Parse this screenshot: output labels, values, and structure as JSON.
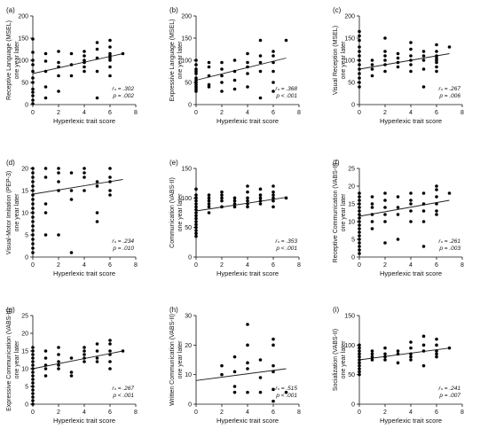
{
  "figure": {
    "xlabel_common": "Hyperlexic trait score"
  },
  "chart_data": [
    {
      "type": "scatter",
      "panel": "(a)",
      "ylabel": [
        "Receptive Language (MSEL)",
        "one year later"
      ],
      "xlabel": "Hyperlexic trait score",
      "xlim": [
        0,
        8
      ],
      "ylim": [
        0,
        200
      ],
      "xticks": [
        0,
        2,
        4,
        6,
        8
      ],
      "yticks": [
        0,
        50,
        100,
        150,
        200
      ],
      "stats": [
        "rₛ = .302",
        "p = .002"
      ],
      "regression": [
        [
          0,
          70
        ],
        [
          7,
          115
        ]
      ],
      "x": [
        0,
        0,
        0,
        0,
        0,
        0,
        0,
        0,
        0,
        0,
        0,
        0,
        1,
        1,
        1,
        1,
        1,
        2,
        2,
        2,
        2,
        2,
        3,
        3,
        3,
        4,
        4,
        4,
        4,
        4,
        4,
        5,
        5,
        5,
        5,
        5,
        6,
        6,
        6,
        6,
        6,
        6,
        6,
        6,
        7
      ],
      "y": [
        148,
        118,
        100,
        90,
        75,
        60,
        50,
        35,
        28,
        20,
        10,
        2,
        115,
        98,
        75,
        40,
        15,
        120,
        95,
        85,
        65,
        30,
        115,
        90,
        65,
        120,
        110,
        100,
        95,
        85,
        75,
        140,
        125,
        105,
        75,
        15,
        145,
        130,
        115,
        110,
        105,
        100,
        85,
        65,
        115
      ]
    },
    {
      "type": "scatter",
      "panel": "(b)",
      "ylabel": [
        "Expressive Language (MSEL)",
        "one year later"
      ],
      "xlabel": "Hyperlexic trait score",
      "xlim": [
        0,
        8
      ],
      "ylim": [
        0,
        200
      ],
      "xticks": [
        0,
        2,
        4,
        6,
        8
      ],
      "yticks": [
        0,
        50,
        100,
        150,
        200
      ],
      "stats": [
        "rₛ = .368",
        "p < .001"
      ],
      "regression": [
        [
          0,
          55
        ],
        [
          7,
          105
        ]
      ],
      "x": [
        0,
        0,
        0,
        0,
        0,
        0,
        0,
        0,
        0,
        0,
        0,
        0,
        1,
        1,
        1,
        1,
        1,
        2,
        2,
        2,
        2,
        2,
        3,
        3,
        3,
        3,
        4,
        4,
        4,
        4,
        4,
        5,
        5,
        5,
        5,
        5,
        6,
        6,
        6,
        6,
        6,
        6,
        7
      ],
      "y": [
        100,
        90,
        80,
        75,
        70,
        60,
        55,
        50,
        45,
        40,
        35,
        30,
        95,
        85,
        65,
        45,
        40,
        95,
        80,
        65,
        50,
        30,
        100,
        75,
        55,
        35,
        115,
        95,
        85,
        70,
        40,
        145,
        110,
        95,
        75,
        15,
        120,
        110,
        95,
        75,
        50,
        30,
        145
      ]
    },
    {
      "type": "scatter",
      "panel": "(c)",
      "ylabel": [
        "Visual Reception (MSEL)",
        "one year later"
      ],
      "xlabel": "Hyperlexic trait score",
      "xlim": [
        0,
        8
      ],
      "ylim": [
        0,
        200
      ],
      "xticks": [
        0,
        2,
        4,
        6,
        8
      ],
      "yticks": [
        0,
        50,
        100,
        150,
        200
      ],
      "stats": [
        "rₛ = .267",
        "p = .006"
      ],
      "regression": [
        [
          0,
          80
        ],
        [
          7,
          115
        ]
      ],
      "x": [
        0,
        0,
        0,
        0,
        0,
        0,
        0,
        0,
        0,
        0,
        0,
        0,
        0,
        1,
        1,
        1,
        1,
        2,
        2,
        2,
        2,
        2,
        2,
        3,
        3,
        3,
        3,
        4,
        4,
        4,
        4,
        4,
        4,
        5,
        5,
        5,
        5,
        5,
        6,
        6,
        6,
        6,
        6,
        6,
        6,
        6,
        7
      ],
      "y": [
        165,
        155,
        145,
        130,
        120,
        110,
        100,
        90,
        80,
        70,
        60,
        50,
        40,
        100,
        90,
        80,
        65,
        150,
        120,
        110,
        100,
        90,
        75,
        115,
        105,
        95,
        85,
        140,
        125,
        110,
        100,
        90,
        75,
        120,
        110,
        100,
        80,
        40,
        135,
        120,
        110,
        105,
        100,
        95,
        85,
        75,
        130
      ]
    },
    {
      "type": "scatter",
      "panel": "(d)",
      "ylabel": [
        "Visual-Motor Imitation (PEP-3)",
        "one year later"
      ],
      "xlabel": "Hyperlexic trait score",
      "xlim": [
        0,
        8
      ],
      "ylim": [
        0,
        20
      ],
      "xticks": [
        0,
        2,
        4,
        6,
        8
      ],
      "yticks": [
        0,
        5,
        10,
        15,
        20
      ],
      "stats": [
        "rₛ = .234",
        "p = .010"
      ],
      "regression": [
        [
          0,
          14.2
        ],
        [
          7,
          17.5
        ]
      ],
      "x": [
        0,
        0,
        0,
        0,
        0,
        0,
        0,
        0,
        0,
        0,
        0,
        0,
        0,
        0,
        0,
        0,
        0,
        0,
        0,
        0,
        1,
        1,
        1,
        1,
        1,
        2,
        2,
        2,
        2,
        2,
        3,
        3,
        3,
        3,
        4,
        4,
        4,
        4,
        5,
        5,
        5,
        5,
        6,
        6,
        6,
        6,
        6
      ],
      "y": [
        20,
        19,
        18,
        17,
        16,
        15,
        14,
        13,
        12,
        11,
        10,
        9,
        8,
        7,
        6,
        5,
        4,
        3,
        2,
        1,
        20,
        18,
        12,
        10,
        5,
        20,
        19,
        17,
        15,
        5,
        19,
        15,
        13,
        1,
        20,
        19,
        18,
        15,
        17,
        16,
        10,
        8,
        20,
        18,
        17,
        15,
        14
      ]
    },
    {
      "type": "scatter",
      "panel": "(e)",
      "ylabel": [
        "Communication (VABS-II)",
        "one year later"
      ],
      "xlabel": "Hyperlexic trait score",
      "xlim": [
        0,
        8
      ],
      "ylim": [
        0,
        150
      ],
      "xticks": [
        0,
        2,
        4,
        6,
        8
      ],
      "yticks": [
        0,
        50,
        100,
        150
      ],
      "stats": [
        "rₛ = .353",
        "p < .001"
      ],
      "regression": [
        [
          0,
          78
        ],
        [
          7,
          101
        ]
      ],
      "x": [
        0,
        0,
        0,
        0,
        0,
        0,
        0,
        0,
        0,
        0,
        0,
        0,
        0,
        0,
        0,
        0,
        1,
        1,
        1,
        1,
        1,
        1,
        2,
        2,
        2,
        2,
        2,
        3,
        3,
        3,
        3,
        4,
        4,
        4,
        4,
        4,
        4,
        5,
        5,
        5,
        5,
        5,
        6,
        6,
        6,
        6,
        6,
        6,
        7
      ],
      "y": [
        115,
        105,
        100,
        95,
        90,
        85,
        80,
        75,
        70,
        65,
        60,
        55,
        50,
        45,
        40,
        35,
        105,
        100,
        95,
        90,
        85,
        75,
        110,
        105,
        100,
        95,
        85,
        100,
        95,
        90,
        85,
        120,
        110,
        100,
        95,
        90,
        85,
        115,
        105,
        100,
        95,
        90,
        120,
        110,
        105,
        100,
        95,
        85,
        100
      ]
    },
    {
      "type": "scatter",
      "panel": "(f)",
      "ylabel": [
        "Receptive Communication (VABS-II)",
        "one year later"
      ],
      "xlabel": "Hyperlexic trait score",
      "xlim": [
        0,
        8
      ],
      "ylim": [
        0,
        25
      ],
      "xticks": [
        0,
        2,
        4,
        6,
        8
      ],
      "yticks": [
        0,
        5,
        10,
        15,
        20,
        25
      ],
      "stats": [
        "rₛ = .261",
        "p = .003"
      ],
      "regression": [
        [
          0,
          11.5
        ],
        [
          7,
          16
        ]
      ],
      "x": [
        0,
        0,
        0,
        0,
        0,
        0,
        0,
        0,
        0,
        0,
        0,
        0,
        0,
        0,
        0,
        0,
        0,
        0,
        1,
        1,
        1,
        1,
        1,
        1,
        2,
        2,
        2,
        2,
        2,
        2,
        3,
        3,
        3,
        3,
        4,
        4,
        4,
        4,
        4,
        5,
        5,
        5,
        5,
        5,
        6,
        6,
        6,
        6,
        6,
        6,
        7
      ],
      "y": [
        18,
        17,
        16,
        15,
        14,
        13,
        12,
        11,
        10,
        9,
        8,
        7,
        6,
        5,
        4,
        3,
        2,
        1,
        17,
        15,
        14,
        12,
        10,
        8,
        18,
        16,
        14,
        12,
        10,
        4,
        17,
        14,
        12,
        5,
        18,
        16,
        15,
        13,
        10,
        18,
        15,
        13,
        10,
        3,
        20,
        19,
        17,
        15,
        13,
        12,
        18
      ]
    },
    {
      "type": "scatter",
      "panel": "(g)",
      "ylabel": [
        "Expressive Communication (VABS-II)",
        "one year later"
      ],
      "xlabel": "Hyperlexic trait score",
      "xlim": [
        0,
        8
      ],
      "ylim": [
        0,
        25
      ],
      "xticks": [
        0,
        2,
        4,
        6,
        8
      ],
      "yticks": [
        0,
        5,
        10,
        15,
        20,
        25
      ],
      "stats": [
        "rₛ = .267",
        "p < .001"
      ],
      "regression": [
        [
          0,
          10
        ],
        [
          7,
          15
        ]
      ],
      "x": [
        0,
        0,
        0,
        0,
        0,
        0,
        0,
        0,
        0,
        0,
        0,
        0,
        0,
        0,
        0,
        0,
        0,
        1,
        1,
        1,
        1,
        1,
        2,
        2,
        2,
        2,
        2,
        3,
        3,
        3,
        4,
        4,
        4,
        4,
        4,
        5,
        5,
        5,
        5,
        6,
        6,
        6,
        6,
        6,
        6,
        7
      ],
      "y": [
        16,
        15,
        14,
        13,
        12,
        11,
        10,
        9,
        8,
        7,
        6,
        5,
        4,
        3,
        2,
        1,
        0,
        15,
        13,
        11,
        10,
        8,
        16,
        14,
        12,
        11,
        10,
        13,
        9,
        8,
        16,
        15,
        14,
        13,
        12,
        17,
        15,
        13,
        12,
        18,
        17,
        15,
        14,
        12,
        10,
        15
      ]
    },
    {
      "type": "scatter",
      "panel": "(h)",
      "ylabel": [
        "Written Communication (VABS-II)",
        "one year later"
      ],
      "xlabel": "Hyperlexic trait score",
      "xlim": [
        0,
        8
      ],
      "ylim": [
        0,
        30
      ],
      "xticks": [
        0,
        2,
        4,
        6,
        8
      ],
      "yticks": [
        0,
        10,
        20,
        30
      ],
      "stats": [
        "rₛ = .515",
        "p < .001"
      ],
      "regression": [
        [
          0,
          8
        ],
        [
          7,
          12
        ]
      ],
      "x": [
        2,
        2,
        3,
        3,
        3,
        3,
        4,
        4,
        4,
        4,
        4,
        5,
        5,
        5,
        6,
        6,
        6,
        6,
        6,
        6,
        7
      ],
      "y": [
        13,
        10,
        16,
        11,
        6,
        4,
        27,
        20,
        14,
        12,
        4,
        15,
        9,
        4,
        22,
        20,
        13,
        11,
        5,
        1,
        4
      ]
    },
    {
      "type": "scatter",
      "panel": "(i)",
      "ylabel": [
        "Socialization (VABS-II)",
        "one year later"
      ],
      "xlabel": "Hyperlexic trait score",
      "xlim": [
        0,
        8
      ],
      "ylim": [
        0,
        150
      ],
      "xticks": [
        0,
        2,
        4,
        6,
        8
      ],
      "yticks": [
        0,
        50,
        100,
        150
      ],
      "stats": [
        "rₛ = .241",
        "p = .007"
      ],
      "regression": [
        [
          0,
          75
        ],
        [
          7,
          95
        ]
      ],
      "x": [
        0,
        0,
        0,
        0,
        0,
        0,
        0,
        0,
        0,
        0,
        0,
        1,
        1,
        1,
        1,
        2,
        2,
        2,
        2,
        3,
        3,
        3,
        4,
        4,
        4,
        4,
        4,
        5,
        5,
        5,
        5,
        6,
        6,
        6,
        6,
        6,
        7
      ],
      "y": [
        100,
        95,
        90,
        85,
        80,
        75,
        70,
        65,
        60,
        55,
        50,
        90,
        85,
        80,
        75,
        95,
        85,
        80,
        75,
        90,
        85,
        70,
        105,
        95,
        85,
        80,
        75,
        115,
        100,
        90,
        65,
        110,
        100,
        90,
        85,
        80,
        95
      ]
    }
  ]
}
